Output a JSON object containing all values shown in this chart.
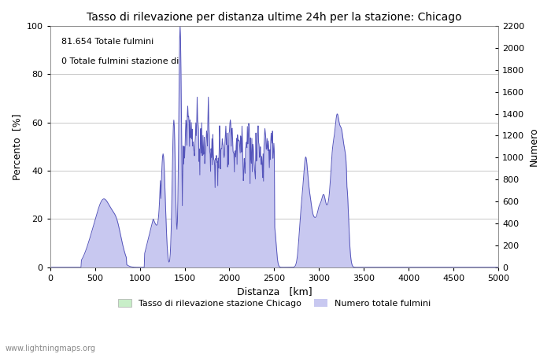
{
  "title": "Tasso di rilevazione per distanza ultime 24h per la stazione: Chicago",
  "xlabel": "Distanza   [km]",
  "ylabel_left": "Percento  [%]",
  "ylabel_right": "Numero",
  "annotation_line1": "81.654 Totale fulmini",
  "annotation_line2": "0 Totale fulmini stazione di",
  "watermark": "www.lightningmaps.org",
  "legend_label1": "Tasso di rilevazione stazione Chicago",
  "legend_label2": "Numero totale fulmini",
  "xlim": [
    0,
    5000
  ],
  "ylim_left": [
    0,
    100
  ],
  "ylim_right": [
    0,
    2200
  ],
  "xticks": [
    0,
    500,
    1000,
    1500,
    2000,
    2500,
    3000,
    3500,
    4000,
    4500,
    5000
  ],
  "yticks_left": [
    0,
    20,
    40,
    60,
    80,
    100
  ],
  "yticks_right": [
    0,
    200,
    400,
    600,
    800,
    1000,
    1200,
    1400,
    1600,
    1800,
    2000,
    2200
  ],
  "fill_color_blue": "#c8c8f0",
  "fill_color_green": "#c8eec8",
  "line_color": "#5555bb",
  "background_color": "#ffffff",
  "grid_color": "#c8c8c8"
}
